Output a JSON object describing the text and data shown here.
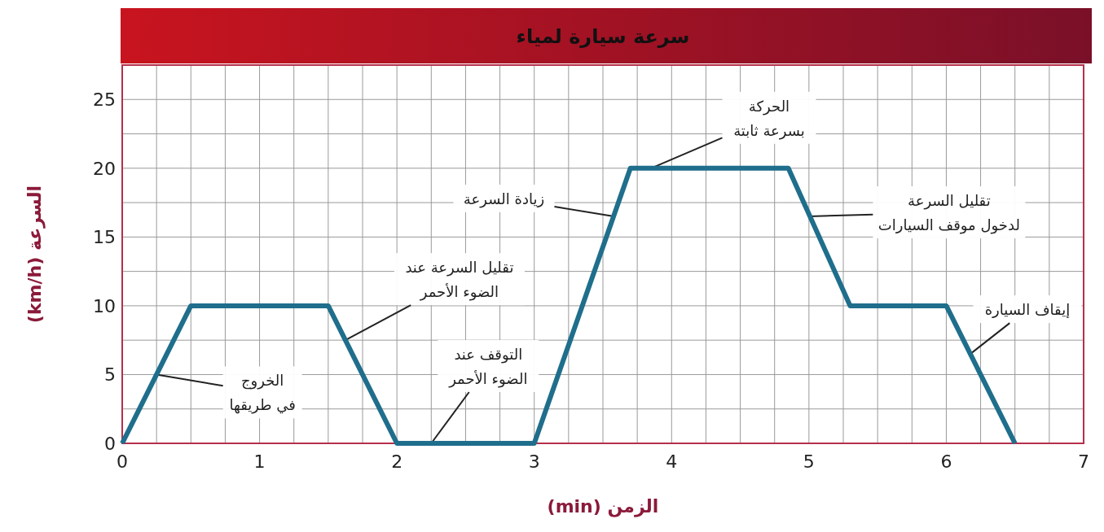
{
  "chart_data": {
    "type": "line",
    "title": "سرعة سيارة لمياء",
    "xlabel": "الزمن (min)",
    "ylabel": "السرعة (km/h)",
    "x": [
      0,
      0.5,
      1.5,
      2,
      3,
      3.7,
      4.85,
      5.3,
      6,
      6.5
    ],
    "series": [
      {
        "color": "#1f6e8c",
        "values": [
          0,
          10,
          10,
          0,
          0,
          20,
          20,
          10,
          10,
          0
        ]
      }
    ],
    "xlim": [
      0,
      7
    ],
    "xticks": [
      0,
      1,
      2,
      3,
      4,
      5,
      6,
      7
    ],
    "ylim": [
      0,
      27.5
    ],
    "yticks": [
      0,
      5,
      10,
      15,
      20,
      25
    ],
    "grid": true,
    "marker": "none",
    "line_style": "solid",
    "annotations": [
      {
        "text": "الخروج\nفي طريقها",
        "x": 0.25,
        "y": 5
      },
      {
        "text": "تقليل السرعة عند\nالضوء الأحمر",
        "x": 1.625,
        "y": 7.5
      },
      {
        "text": "التوقف عند\nالضوء الأحمر",
        "x": 2.25,
        "y": 0
      },
      {
        "text": "زيادة السرعة",
        "x": 3.58,
        "y": 16.5
      },
      {
        "text": "الحركة\nبسرعة ثابتة",
        "x": 3.85,
        "y": 20
      },
      {
        "text": "تقليل السرعة\nلدخول موقف السيارات",
        "x": 5.0,
        "y": 16.5
      },
      {
        "text": "إيقاف السيارة",
        "x": 6.175,
        "y": 6.5
      }
    ]
  }
}
